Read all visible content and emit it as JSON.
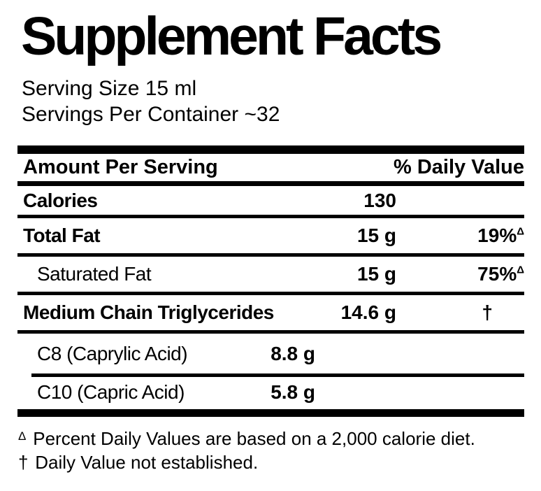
{
  "colors": {
    "text": "#000000",
    "background": "#ffffff"
  },
  "label": {
    "title": "Supplement Facts",
    "serving_size": "Serving Size 15 ml",
    "servings_per_container": "Servings Per Container ~32",
    "header": {
      "amount_col": "Amount Per Serving",
      "dv_col": "% Daily Value"
    },
    "rows": [
      {
        "name": "Calories",
        "amount": "130",
        "dv": ""
      },
      {
        "name": "Total Fat",
        "amount": "15 g",
        "dv": "19%",
        "dv_mark": "Δ"
      },
      {
        "name": "Saturated Fat",
        "amount": "15 g",
        "dv": "75%",
        "dv_mark": "Δ"
      },
      {
        "name": "Medium Chain Triglycerides",
        "amount": "14.6 g",
        "dv": "†"
      },
      {
        "name": "C8 (Caprylic Acid)",
        "amount": "8.8 g",
        "dv": ""
      },
      {
        "name": "C10 (Capric Acid)",
        "amount": "5.8 g",
        "dv": ""
      }
    ],
    "footnotes": [
      {
        "marker": "Δ",
        "text": "Percent Daily Values are based on a 2,000 calorie diet."
      },
      {
        "marker": "†",
        "text": "Daily Value not established."
      }
    ]
  }
}
